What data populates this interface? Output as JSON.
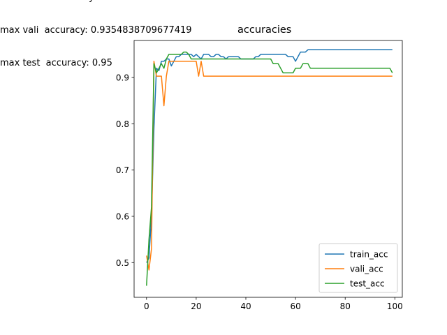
{
  "annotations": {
    "clipped_top": "y",
    "max_vali": "max vali  accuracy: 0.9354838709677419",
    "max_test": "max test  accuracy: 0.95"
  },
  "chart_data": {
    "type": "line",
    "title": "accuracies",
    "xlabel": "",
    "ylabel": "",
    "xlim": [
      -5,
      103
    ],
    "ylim": [
      0.425,
      0.98
    ],
    "x_ticks": [
      0,
      20,
      40,
      60,
      80,
      100
    ],
    "y_ticks": [
      0.5,
      0.6,
      0.7,
      0.8,
      0.9
    ],
    "grid": false,
    "legend_position": "lower-right",
    "colors": {
      "train_acc": "#1f77b4",
      "vali_acc": "#ff7f0e",
      "test_acc": "#2ca02c"
    },
    "series": [
      {
        "name": "train_acc",
        "points": [
          [
            0,
            0.5
          ],
          [
            1,
            0.51
          ],
          [
            2,
            0.6
          ],
          [
            3,
            0.79
          ],
          [
            4,
            0.92
          ],
          [
            5,
            0.915
          ],
          [
            6,
            0.935
          ],
          [
            7,
            0.935
          ],
          [
            8,
            0.94
          ],
          [
            9,
            0.94
          ],
          [
            10,
            0.925
          ],
          [
            11,
            0.935
          ],
          [
            12,
            0.945
          ],
          [
            13,
            0.945
          ],
          [
            14,
            0.95
          ],
          [
            15,
            0.95
          ],
          [
            16,
            0.95
          ],
          [
            17,
            0.95
          ],
          [
            18,
            0.95
          ],
          [
            19,
            0.945
          ],
          [
            20,
            0.95
          ],
          [
            21,
            0.945
          ],
          [
            22,
            0.94
          ],
          [
            23,
            0.95
          ],
          [
            24,
            0.95
          ],
          [
            25,
            0.95
          ],
          [
            26,
            0.945
          ],
          [
            27,
            0.945
          ],
          [
            28,
            0.95
          ],
          [
            29,
            0.95
          ],
          [
            30,
            0.945
          ],
          [
            31,
            0.945
          ],
          [
            32,
            0.94
          ],
          [
            33,
            0.945
          ],
          [
            34,
            0.945
          ],
          [
            35,
            0.945
          ],
          [
            36,
            0.945
          ],
          [
            37,
            0.945
          ],
          [
            38,
            0.94
          ],
          [
            39,
            0.94
          ],
          [
            40,
            0.94
          ],
          [
            41,
            0.94
          ],
          [
            42,
            0.94
          ],
          [
            43,
            0.94
          ],
          [
            44,
            0.945
          ],
          [
            45,
            0.945
          ],
          [
            46,
            0.95
          ],
          [
            47,
            0.95
          ],
          [
            48,
            0.95
          ],
          [
            49,
            0.95
          ],
          [
            50,
            0.95
          ],
          [
            51,
            0.95
          ],
          [
            52,
            0.95
          ],
          [
            53,
            0.95
          ],
          [
            54,
            0.95
          ],
          [
            55,
            0.95
          ],
          [
            56,
            0.95
          ],
          [
            57,
            0.945
          ],
          [
            58,
            0.945
          ],
          [
            59,
            0.945
          ],
          [
            60,
            0.935
          ],
          [
            61,
            0.945
          ],
          [
            62,
            0.955
          ],
          [
            63,
            0.955
          ],
          [
            64,
            0.955
          ],
          [
            65,
            0.96
          ],
          [
            66,
            0.96
          ],
          [
            70,
            0.96
          ],
          [
            80,
            0.96
          ],
          [
            90,
            0.96
          ],
          [
            99,
            0.96
          ]
        ]
      },
      {
        "name": "vali_acc",
        "points": [
          [
            0,
            0.515
          ],
          [
            1,
            0.484
          ],
          [
            2,
            0.53
          ],
          [
            3,
            0.935
          ],
          [
            4,
            0.903
          ],
          [
            5,
            0.903
          ],
          [
            6,
            0.903
          ],
          [
            7,
            0.839
          ],
          [
            8,
            0.903
          ],
          [
            9,
            0.935
          ],
          [
            10,
            0.935
          ],
          [
            11,
            0.935
          ],
          [
            12,
            0.935
          ],
          [
            13,
            0.935
          ],
          [
            14,
            0.935
          ],
          [
            15,
            0.935
          ],
          [
            16,
            0.935
          ],
          [
            17,
            0.935
          ],
          [
            18,
            0.935
          ],
          [
            19,
            0.935
          ],
          [
            20,
            0.935
          ],
          [
            21,
            0.903
          ],
          [
            22,
            0.935
          ],
          [
            23,
            0.903
          ],
          [
            30,
            0.903
          ],
          [
            40,
            0.903
          ],
          [
            50,
            0.903
          ],
          [
            60,
            0.903
          ],
          [
            70,
            0.903
          ],
          [
            80,
            0.903
          ],
          [
            90,
            0.903
          ],
          [
            99,
            0.903
          ]
        ]
      },
      {
        "name": "test_acc",
        "points": [
          [
            0,
            0.45
          ],
          [
            1,
            0.55
          ],
          [
            2,
            0.62
          ],
          [
            3,
            0.93
          ],
          [
            4,
            0.91
          ],
          [
            5,
            0.92
          ],
          [
            6,
            0.93
          ],
          [
            7,
            0.92
          ],
          [
            8,
            0.94
          ],
          [
            9,
            0.95
          ],
          [
            10,
            0.95
          ],
          [
            14,
            0.95
          ],
          [
            15,
            0.955
          ],
          [
            16,
            0.955
          ],
          [
            17,
            0.95
          ],
          [
            18,
            0.94
          ],
          [
            19,
            0.94
          ],
          [
            20,
            0.94
          ],
          [
            21,
            0.94
          ],
          [
            22,
            0.94
          ],
          [
            23,
            0.94
          ],
          [
            30,
            0.94
          ],
          [
            40,
            0.94
          ],
          [
            50,
            0.94
          ],
          [
            51,
            0.93
          ],
          [
            52,
            0.93
          ],
          [
            53,
            0.93
          ],
          [
            54,
            0.92
          ],
          [
            55,
            0.91
          ],
          [
            56,
            0.91
          ],
          [
            57,
            0.91
          ],
          [
            58,
            0.91
          ],
          [
            59,
            0.91
          ],
          [
            60,
            0.92
          ],
          [
            61,
            0.92
          ],
          [
            62,
            0.92
          ],
          [
            63,
            0.93
          ],
          [
            64,
            0.93
          ],
          [
            65,
            0.93
          ],
          [
            66,
            0.92
          ],
          [
            67,
            0.92
          ],
          [
            70,
            0.92
          ],
          [
            80,
            0.92
          ],
          [
            90,
            0.92
          ],
          [
            98,
            0.92
          ],
          [
            99,
            0.91
          ]
        ]
      }
    ]
  }
}
